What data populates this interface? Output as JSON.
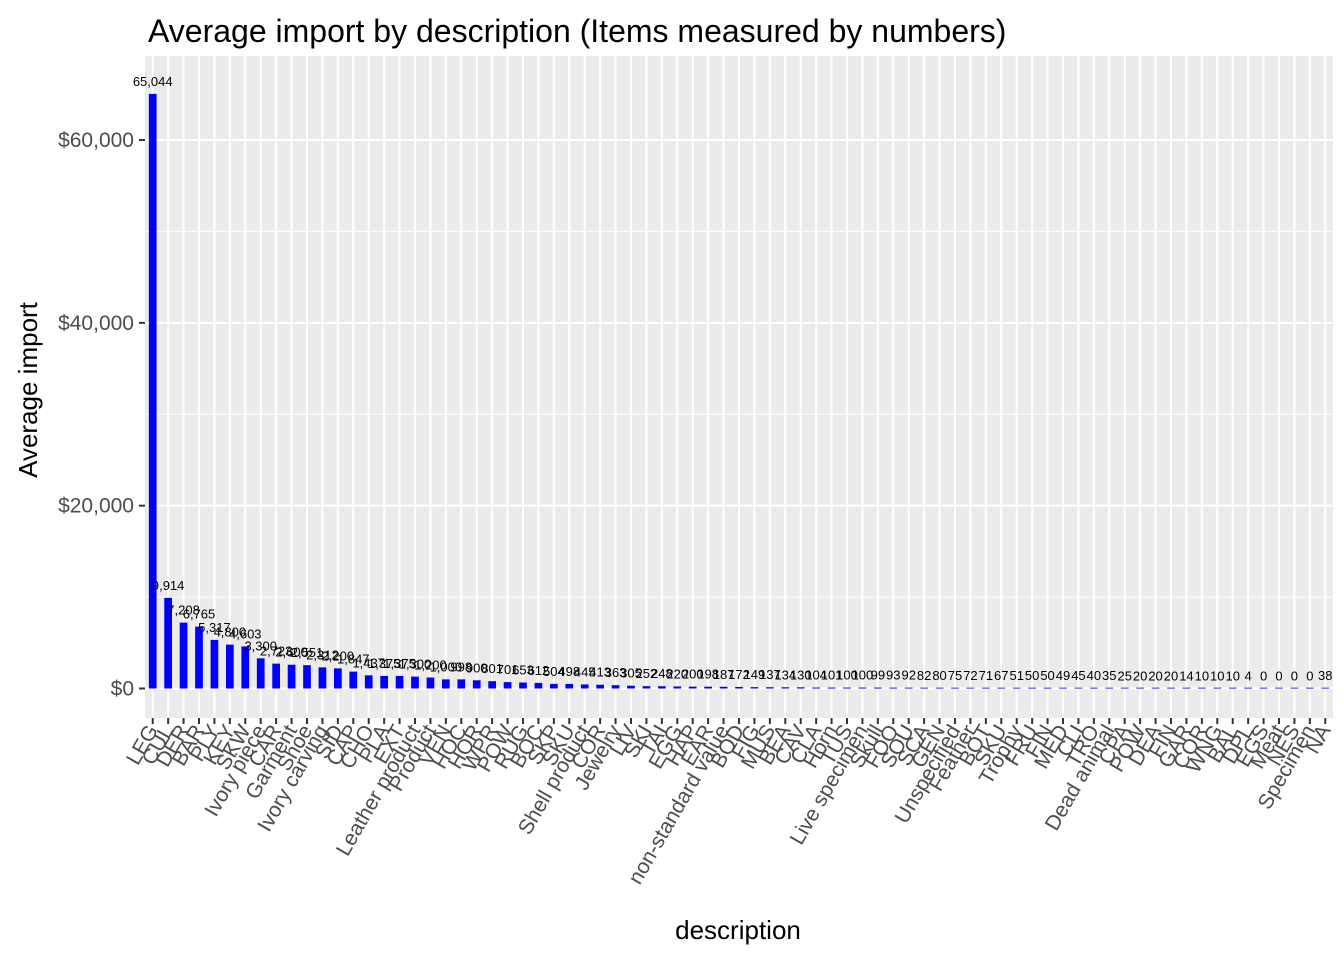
{
  "chart_data": {
    "type": "bar",
    "title": "Average import by description (Items measured by numbers)",
    "xlabel": "description",
    "ylabel": "Average import",
    "y_prefix": "$",
    "ylim": [
      0,
      68000
    ],
    "yticks": [
      0,
      20000,
      40000,
      60000
    ],
    "ytick_labels": [
      "$0",
      "$20,000",
      "$40,000",
      "$60,000"
    ],
    "bar_color": "#0000FF",
    "panel_color": "#EBEBEB",
    "grid_color": "#FFFFFF",
    "grid": true,
    "legend": "none",
    "categories": [
      "LEG",
      "CUL",
      "DER",
      "BAR",
      "PLY",
      "KEY",
      "SKW",
      "Ivory piece",
      "CAR",
      "Garment",
      "Shoe",
      "Ivory carving",
      "SID",
      "CAP",
      "CHO",
      "PLA",
      "EXT",
      "Leather product",
      "Product",
      "VEN",
      "HOC",
      "HOR",
      "WPR",
      "POW",
      "RUG",
      "BOC",
      "SKP",
      "SKU",
      "Shell product",
      "COR",
      "Jewelry",
      "LIV",
      "SKI",
      "TAI",
      "EGG",
      "HAP",
      "EAR",
      "non-standard value",
      "BOD",
      "FIG",
      "MUS",
      "BEA",
      "CAV",
      "CLA",
      "Horn",
      "TUS",
      "Live specimen",
      "Skull",
      "FOO",
      "SOU",
      "SCA",
      "GEN",
      "Unspecified",
      "Feather",
      "BOT",
      "SKU",
      "Trophy",
      "FRU",
      "FIN",
      "MED",
      "CLI",
      "TRO",
      "Dead animal",
      "CPA",
      "POW",
      "DEA",
      "FIN",
      "GAR",
      "COR",
      "WNG",
      "BAL",
      "DPL",
      "EGS",
      "Meat",
      "NES",
      "Specimen",
      "NA"
    ],
    "values": [
      65044,
      9914,
      7208,
      6765,
      5317,
      4800,
      4603,
      3300,
      2723,
      2600,
      2551,
      2312,
      2200,
      1847,
      1437,
      1375,
      1375,
      1300,
      1200,
      1000,
      998,
      900,
      801,
      701,
      653,
      612,
      504,
      498,
      445,
      413,
      363,
      305,
      252,
      248,
      220,
      200,
      198,
      187,
      172,
      149,
      137,
      134,
      130,
      104,
      101,
      100,
      100,
      99,
      93,
      92,
      82,
      80,
      75,
      72,
      71,
      67,
      51,
      50,
      50,
      49,
      45,
      40,
      35,
      25,
      20,
      20,
      20,
      14,
      10,
      10,
      10,
      4,
      0,
      0,
      0,
      0,
      38
    ],
    "data_labels": [
      "65,044",
      "9,914",
      "7,208",
      "6,765",
      "5,317",
      "4,800",
      "4,603",
      "3,300",
      "2,723",
      "2,600",
      "2,551",
      "2,312",
      "2,200",
      "1,847",
      "1,437",
      "1,375",
      "1,375",
      "1,300",
      "1,200",
      "1,000",
      "998",
      "900",
      "801",
      "701",
      "653",
      "612",
      "504",
      "498",
      "445",
      "413",
      "363",
      "305",
      "252",
      "248",
      "220",
      "200",
      "198",
      "187",
      "172",
      "149",
      "137",
      "134",
      "130",
      "104",
      "101",
      "100",
      "100",
      "99",
      "93",
      "92",
      "82",
      "80",
      "75",
      "72",
      "71",
      "67",
      "51",
      "50",
      "50",
      "49",
      "45",
      "40",
      "35",
      "25",
      "20",
      "20",
      "20",
      "14",
      "10",
      "10",
      "10",
      "4",
      "0",
      "0",
      "0",
      "0",
      "38"
    ]
  }
}
